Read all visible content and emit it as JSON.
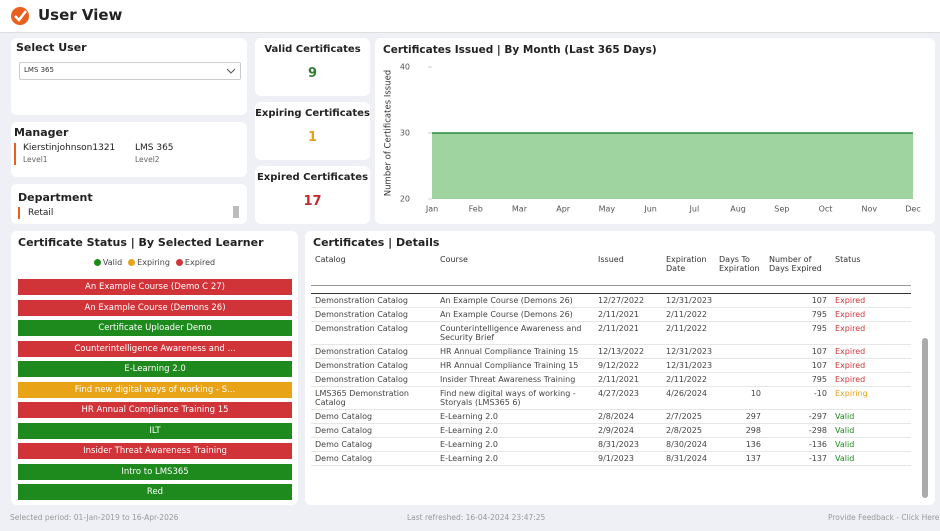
{
  "header": {
    "title": "User View"
  },
  "select_user": {
    "label": "Select User",
    "value": "LMS 365"
  },
  "manager": {
    "label": "Manager",
    "people": [
      {
        "name": "Kierstinjohnson1321",
        "level": "Level1"
      },
      {
        "name": "LMS 365",
        "level": "Level2"
      }
    ]
  },
  "department": {
    "label": "Department",
    "value": "Retail"
  },
  "kpis": [
    {
      "label": "Valid Certificates",
      "value": 9,
      "color": "#2e7d32"
    },
    {
      "label": "Expiring Certificates",
      "value": 1,
      "color": "#e0a020"
    },
    {
      "label": "Expired Certificates",
      "value": 17,
      "color": "#c62828"
    }
  ],
  "chart_data": {
    "type": "area",
    "title": "Certificates Issued | By Month (Last 365 Days)",
    "y_label": "Number of Certificates Issued",
    "categories": [
      "Jan",
      "Feb",
      "Mar",
      "Apr",
      "May",
      "Jun",
      "Jul",
      "Aug",
      "Sep",
      "Oct",
      "Nov",
      "Dec"
    ],
    "values": [
      30,
      30,
      30,
      30,
      30,
      30,
      30,
      30,
      30,
      30,
      30,
      30
    ],
    "color": "#9fd3a0",
    "line_color": "#2e8b3e",
    "ylim": [
      20,
      40
    ],
    "yticks": [
      20,
      30,
      40
    ],
    "grid": false
  },
  "certificate_status": {
    "title": "Certificate Status | By Selected Learner",
    "legend": [
      {
        "label": "Valid",
        "color": "#1e8a1e"
      },
      {
        "label": "Expiring",
        "color": "#e8a317"
      },
      {
        "label": "Expired",
        "color": "#d13438"
      }
    ],
    "courses": [
      {
        "label": "An Example Course (Demo C 27)",
        "color": "#d13438"
      },
      {
        "label": "An Example Course (Demons 26)",
        "color": "#d13438"
      },
      {
        "label": "Certificate Uploader Demo",
        "color": "#1e8a1e"
      },
      {
        "label": "Counterintelligence Awareness and ...",
        "color": "#d13438"
      },
      {
        "label": "E-Learning 2.0",
        "color": "#1e8a1e"
      },
      {
        "label": "Find new digital ways of working - S...",
        "color": "#e8a317"
      },
      {
        "label": "HR Annual Compliance Training 15",
        "color": "#d13438"
      },
      {
        "label": "ILT",
        "color": "#1e8a1e"
      },
      {
        "label": "Insider Threat Awareness Training",
        "color": "#d13438"
      },
      {
        "label": "Intro to LMS365",
        "color": "#1e8a1e"
      },
      {
        "label": "Red",
        "color": "#1e8a1e"
      }
    ]
  },
  "details": {
    "title": "Certificates | Details",
    "columns": [
      "Catalog",
      "Course",
      "Issued",
      "Expiration Date",
      "Days To Expiration",
      "Number of Days Expired",
      "Status"
    ],
    "rows": [
      [
        "Demonstration Catalog",
        "An Example Course (Demons 26)",
        "12/27/2022",
        "12/31/2023",
        null,
        107,
        "Expired"
      ],
      [
        "Demonstration Catalog",
        "An Example Course (Demons 26)",
        "2/11/2021",
        "2/11/2022",
        null,
        795,
        "Expired"
      ],
      [
        "Demonstration Catalog",
        "Counterintelligence Awareness and Security Brief",
        "2/11/2021",
        "2/11/2022",
        null,
        795,
        "Expired"
      ],
      [
        "Demonstration Catalog",
        "HR Annual Compliance Training 15",
        "12/13/2022",
        "12/31/2023",
        null,
        107,
        "Expired"
      ],
      [
        "Demonstration Catalog",
        "HR Annual Compliance Training 15",
        "9/12/2022",
        "12/31/2023",
        null,
        107,
        "Expired"
      ],
      [
        "Demonstration Catalog",
        "Insider Threat Awareness Training",
        "2/11/2021",
        "2/11/2022",
        null,
        795,
        "Expired"
      ],
      [
        "LMS365 Demonstration Catalog",
        "Find new digital ways of working - Storyals (LMS365 6)",
        "4/27/2023",
        "4/26/2024",
        10,
        -10,
        "Expiring"
      ],
      [
        "Demo Catalog",
        "E-Learning 2.0",
        "2/8/2024",
        "2/7/2025",
        297,
        -297,
        "Valid"
      ],
      [
        "Demo Catalog",
        "E-Learning 2.0",
        "2/9/2024",
        "2/8/2025",
        298,
        -298,
        "Valid"
      ],
      [
        "Demo Catalog",
        "E-Learning 2.0",
        "8/31/2023",
        "8/30/2024",
        136,
        -136,
        "Valid"
      ],
      [
        "Demo Catalog",
        "E-Learning 2.0",
        "9/1/2023",
        "8/31/2024",
        137,
        -137,
        "Valid"
      ]
    ]
  },
  "footer": {
    "period": "Selected period: 01-Jan-2019 to 16-Apr-2026",
    "refreshed": "Last refreshed: 16-04-2024 23:47:25",
    "feedback": "Provide Feedback - Click Here"
  }
}
